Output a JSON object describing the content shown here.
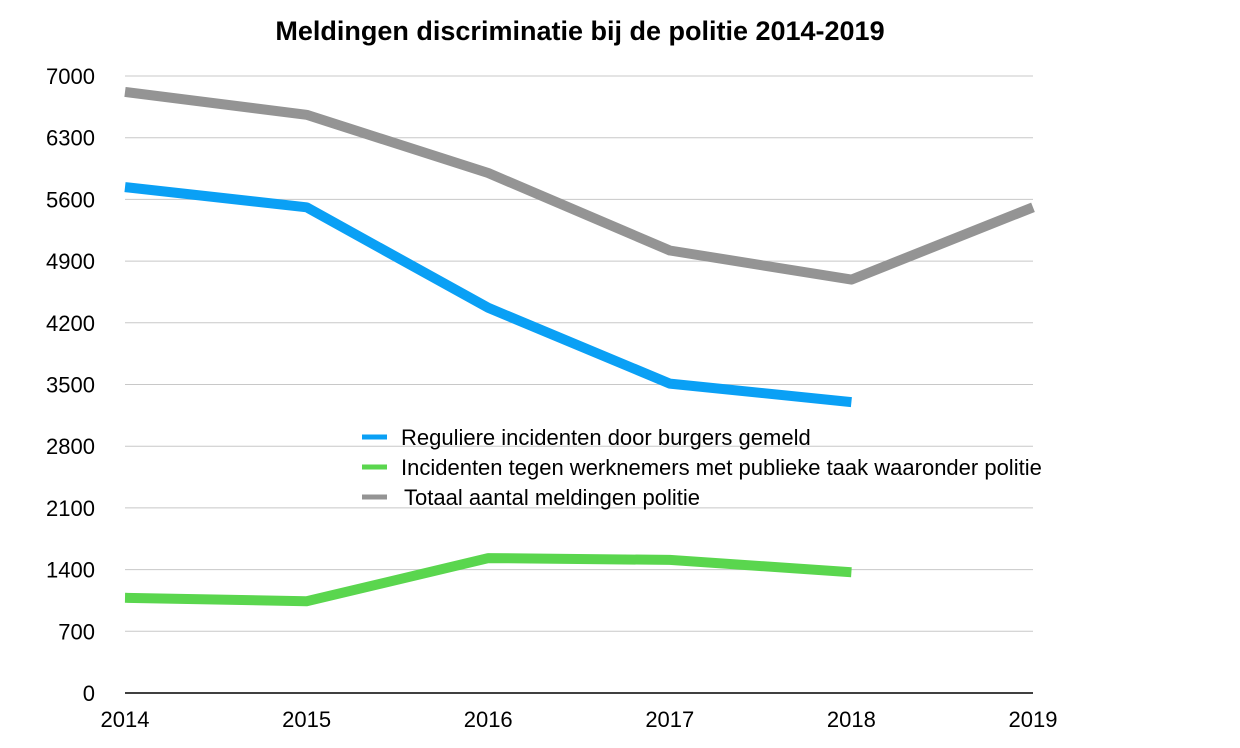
{
  "chart_data": {
    "type": "line",
    "title": "Meldingen discriminatie bij de politie 2014-2019",
    "xlabel": "",
    "ylabel": "",
    "x": [
      2014,
      2015,
      2016,
      2017,
      2018,
      2019
    ],
    "x_tick_labels": [
      "2014",
      "2015",
      "2016",
      "2017",
      "2018",
      "2019"
    ],
    "ylim": [
      0,
      7000
    ],
    "y_ticks": [
      0,
      700,
      1400,
      2100,
      2800,
      3500,
      4200,
      4900,
      5600,
      6300,
      7000
    ],
    "y_tick_labels": [
      "0",
      "700",
      "1400",
      "2100",
      "2800",
      "3500",
      "4200",
      "4900",
      "5600",
      "6300",
      "7000"
    ],
    "grid": true,
    "legend_position": "center",
    "series": [
      {
        "name": "Reguliere incidenten door burgers gemeld",
        "color": "#0aa0f5",
        "values": [
          5740,
          5510,
          4370,
          3510,
          3300,
          null
        ]
      },
      {
        "name": "Incidenten tegen werknemers met publieke taak waaronder politie",
        "color": "#5ad64e",
        "values": [
          1080,
          1040,
          1530,
          1510,
          1370,
          null
        ]
      },
      {
        "name": "Totaal aantal meldingen politie",
        "color": "#949494",
        "values": [
          6820,
          6560,
          5900,
          5020,
          4690,
          5510
        ]
      }
    ]
  }
}
